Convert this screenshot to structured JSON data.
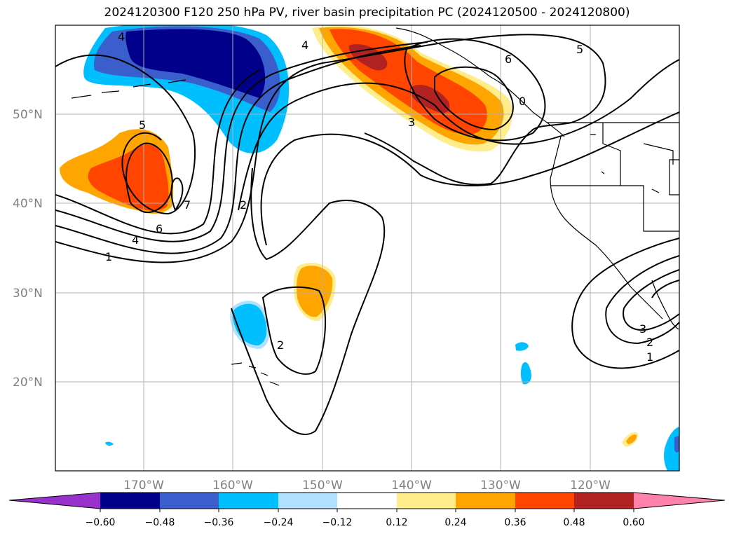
{
  "title": "2024120300 F120 250 hPa PV, river basin precipitation PC (2024120500 - 2024120800)",
  "map": {
    "lat_labels": [
      "50°N",
      "40°N",
      "30°N",
      "20°N"
    ],
    "lon_labels": [
      "170°W",
      "160°W",
      "150°W",
      "140°W",
      "130°W",
      "120°W"
    ],
    "contour_labels": [
      "4",
      "5",
      "7",
      "6",
      "4",
      "1",
      "2",
      "4",
      "3",
      "6",
      "5",
      "0",
      "2",
      "3",
      "2",
      "1"
    ]
  },
  "colorbar": {
    "ticks": [
      "−0.60",
      "−0.48",
      "−0.36",
      "−0.24",
      "−0.12",
      "0.12",
      "0.24",
      "0.36",
      "0.48",
      "0.60"
    ],
    "colors": [
      "#9932cc",
      "#00008b",
      "#3a5fcd",
      "#00bfff",
      "#b0e2ff",
      "#ffffff",
      "#ffec8b",
      "#ffa500",
      "#ff4500",
      "#b22222",
      "#ff82ab"
    ]
  }
}
